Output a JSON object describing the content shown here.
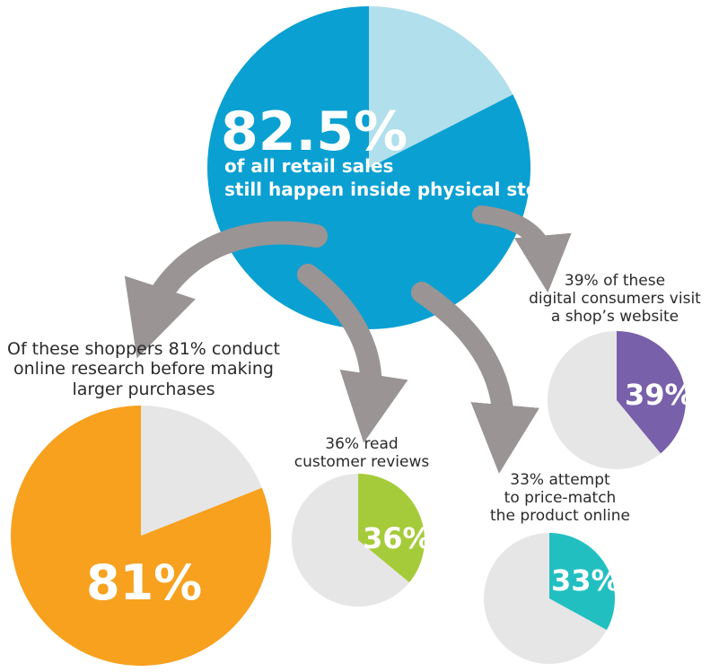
{
  "chart_data": [
    {
      "type": "pie",
      "name": "main",
      "value": 82.5,
      "label": "82.5%",
      "sublabel_lines": [
        "of all retail sales",
        "still happen inside physical stores"
      ],
      "color": "#0aa0d2",
      "rest_color": "#b1dfec"
    },
    {
      "type": "pie",
      "name": "research",
      "value": 81,
      "label": "81%",
      "caption_lines": [
        "Of these shoppers 81% conduct",
        "online research before making",
        "larger purchases"
      ],
      "color": "#f7a11f",
      "rest_color": "#e6e6e6"
    },
    {
      "type": "pie",
      "name": "reviews",
      "value": 36,
      "label": "36%",
      "caption_lines": [
        "36% read",
        "customer reviews"
      ],
      "color": "#a6cb3a",
      "rest_color": "#e6e6e6"
    },
    {
      "type": "pie",
      "name": "website",
      "value": 39,
      "label": "39%",
      "caption_lines": [
        "39% of these",
        "digital consumers visit",
        "a shop’s website"
      ],
      "color": "#7860aa",
      "rest_color": "#e6e6e6"
    },
    {
      "type": "pie",
      "name": "price-match",
      "value": 33,
      "label": "33%",
      "caption_lines": [
        "33% attempt",
        "to price-match",
        "the product online"
      ],
      "color": "#22bfc1",
      "rest_color": "#e6e6e6"
    }
  ],
  "colors": {
    "arrow": "#9a9494"
  }
}
